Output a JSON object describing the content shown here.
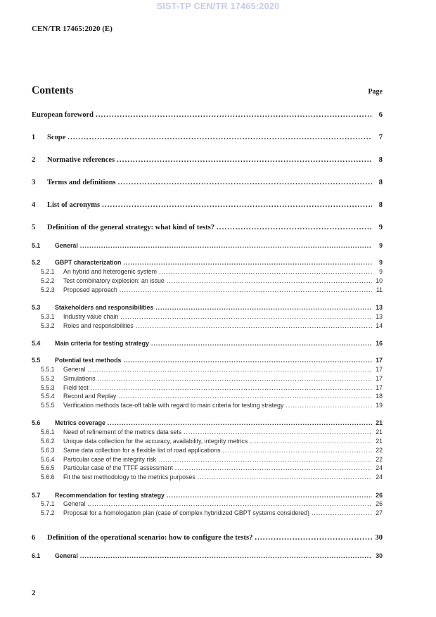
{
  "header": {
    "watermark": "SIST-TP CEN/TR 17465:2020",
    "watermark_color": "#c6c7ef",
    "doc_ref": "CEN/TR 17465:2020 (E)"
  },
  "toc": {
    "title": "Contents",
    "page_label": "Page",
    "entries": [
      {
        "level": 0,
        "number": "",
        "title": "European foreword",
        "page": "6"
      },
      {
        "level": 1,
        "number": "1",
        "title": "Scope",
        "page": "7"
      },
      {
        "level": 1,
        "number": "2",
        "title": "Normative references",
        "page": "8"
      },
      {
        "level": 1,
        "number": "3",
        "title": "Terms and definitions",
        "page": "8"
      },
      {
        "level": 1,
        "number": "4",
        "title": "List of acronyms",
        "page": "8"
      },
      {
        "level": 1,
        "number": "5",
        "title": "Definition of the general strategy: what kind of tests?",
        "page": "9"
      },
      {
        "level": 2,
        "number": "5.1",
        "title": "General",
        "page": "9"
      },
      {
        "level": 2,
        "number": "5.2",
        "title": "GBPT characterization",
        "page": "9"
      },
      {
        "level": 3,
        "number": "5.2.1",
        "title": "An hybrid and heterogenic system",
        "page": "9"
      },
      {
        "level": 3,
        "number": "5.2.2",
        "title": "Test combinatory explosion: an issue",
        "page": "10"
      },
      {
        "level": 3,
        "number": "5.2.3",
        "title": "Proposed approach",
        "page": "11"
      },
      {
        "level": 2,
        "number": "5.3",
        "title": "Stakeholders and responsibilities",
        "page": "13"
      },
      {
        "level": 3,
        "number": "5.3.1",
        "title": "Industry value chain",
        "page": "13"
      },
      {
        "level": 3,
        "number": "5.3.2",
        "title": "Roles and responsibilities",
        "page": "14"
      },
      {
        "level": 2,
        "number": "5.4",
        "title": "Main criteria for testing strategy",
        "page": "16"
      },
      {
        "level": 2,
        "number": "5.5",
        "title": "Potential test methods",
        "page": "17"
      },
      {
        "level": 3,
        "number": "5.5.1",
        "title": "General",
        "page": "17"
      },
      {
        "level": 3,
        "number": "5.5.2",
        "title": "Simulations",
        "page": "17"
      },
      {
        "level": 3,
        "number": "5.5.3",
        "title": "Field test",
        "page": "17"
      },
      {
        "level": 3,
        "number": "5.5.4",
        "title": "Record and Replay",
        "page": "18"
      },
      {
        "level": 3,
        "number": "5.5.5",
        "title": "Verification methods face-off table with regard to main criteria for testing strategy",
        "page": "19"
      },
      {
        "level": 2,
        "number": "5.6",
        "title": "Metrics coverage",
        "page": "21"
      },
      {
        "level": 3,
        "number": "5.6.1",
        "title": "Need of refinement of the metrics data sets",
        "page": "21"
      },
      {
        "level": 3,
        "number": "5.6.2",
        "title": "Unique data collection for the accuracy, availability, integrity metrics",
        "page": "21"
      },
      {
        "level": 3,
        "number": "5.6.3",
        "title": "Same data collection for a flexible list of road applications",
        "page": "22"
      },
      {
        "level": 3,
        "number": "5.6.4",
        "title": "Particular case of the integrity risk",
        "page": "22"
      },
      {
        "level": 3,
        "number": "5.6.5",
        "title": "Particular case of the TTFF assessment",
        "page": "24"
      },
      {
        "level": 3,
        "number": "5.6.6",
        "title": "Fit the test methodology to the metrics purposes",
        "page": "24"
      },
      {
        "level": 2,
        "number": "5.7",
        "title": "Recommendation for testing strategy",
        "page": "26"
      },
      {
        "level": 3,
        "number": "5.7.1",
        "title": "General",
        "page": "26"
      },
      {
        "level": 3,
        "number": "5.7.2",
        "title": "Proposal for a homologation plan (case of complex hybridized GBPT systems considered)",
        "page": "27"
      },
      {
        "level": 1,
        "number": "6",
        "title": "Definition of the operational scenario: how to configure the tests?",
        "page": "30"
      },
      {
        "level": 2,
        "number": "6.1",
        "title": "General",
        "page": "30"
      }
    ]
  },
  "footer": {
    "page_number": "2"
  }
}
